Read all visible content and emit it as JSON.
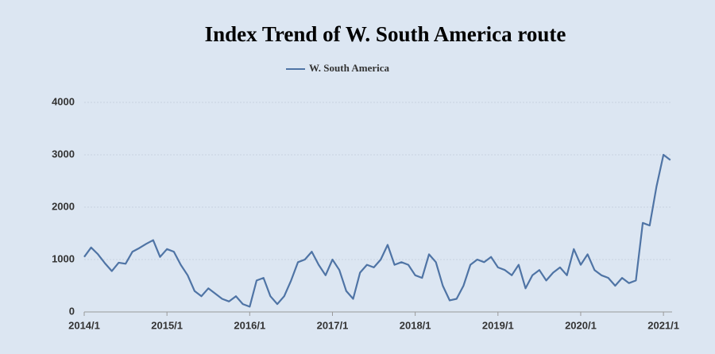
{
  "chart_data": {
    "type": "line",
    "title": "Index Trend of W. South America route",
    "categories": [
      "2014/1",
      null,
      null,
      null,
      null,
      null,
      null,
      null,
      null,
      null,
      null,
      null,
      "2015/1",
      null,
      null,
      null,
      null,
      null,
      null,
      null,
      null,
      null,
      null,
      null,
      "2016/1",
      null,
      null,
      null,
      null,
      null,
      null,
      null,
      null,
      null,
      null,
      null,
      "2017/1",
      null,
      null,
      null,
      null,
      null,
      null,
      null,
      null,
      null,
      null,
      null,
      "2018/1",
      null,
      null,
      null,
      null,
      null,
      null,
      null,
      null,
      null,
      null,
      null,
      "2019/1",
      null,
      null,
      null,
      null,
      null,
      null,
      null,
      null,
      null,
      null,
      null,
      "2020/1",
      null,
      null,
      null,
      null,
      null,
      null,
      null,
      null,
      null,
      null,
      null,
      "2021/1",
      null
    ],
    "series": [
      {
        "name": "W. South America",
        "color": "#4f74a5",
        "values": [
          1050,
          1230,
          1100,
          930,
          780,
          940,
          920,
          1150,
          1220,
          1300,
          1370,
          1050,
          1200,
          1150,
          900,
          700,
          400,
          300,
          450,
          350,
          250,
          200,
          300,
          150,
          100,
          600,
          650,
          300,
          150,
          300,
          600,
          950,
          1000,
          1150,
          900,
          700,
          1000,
          800,
          400,
          250,
          750,
          900,
          850,
          1000,
          1280,
          900,
          950,
          900,
          700,
          650,
          1100,
          950,
          500,
          220,
          250,
          500,
          900,
          1000,
          950,
          1050,
          850,
          800,
          700,
          900,
          450,
          700,
          800,
          600,
          750,
          850,
          700,
          1200,
          900,
          1100,
          800,
          700,
          650,
          500,
          650,
          550,
          600,
          1700,
          1650,
          2400,
          3000,
          2900
        ]
      }
    ],
    "ylim": [
      0,
      4000
    ],
    "yticks": [
      0,
      1000,
      2000,
      3000,
      4000
    ],
    "grid": true,
    "legend": "top"
  }
}
